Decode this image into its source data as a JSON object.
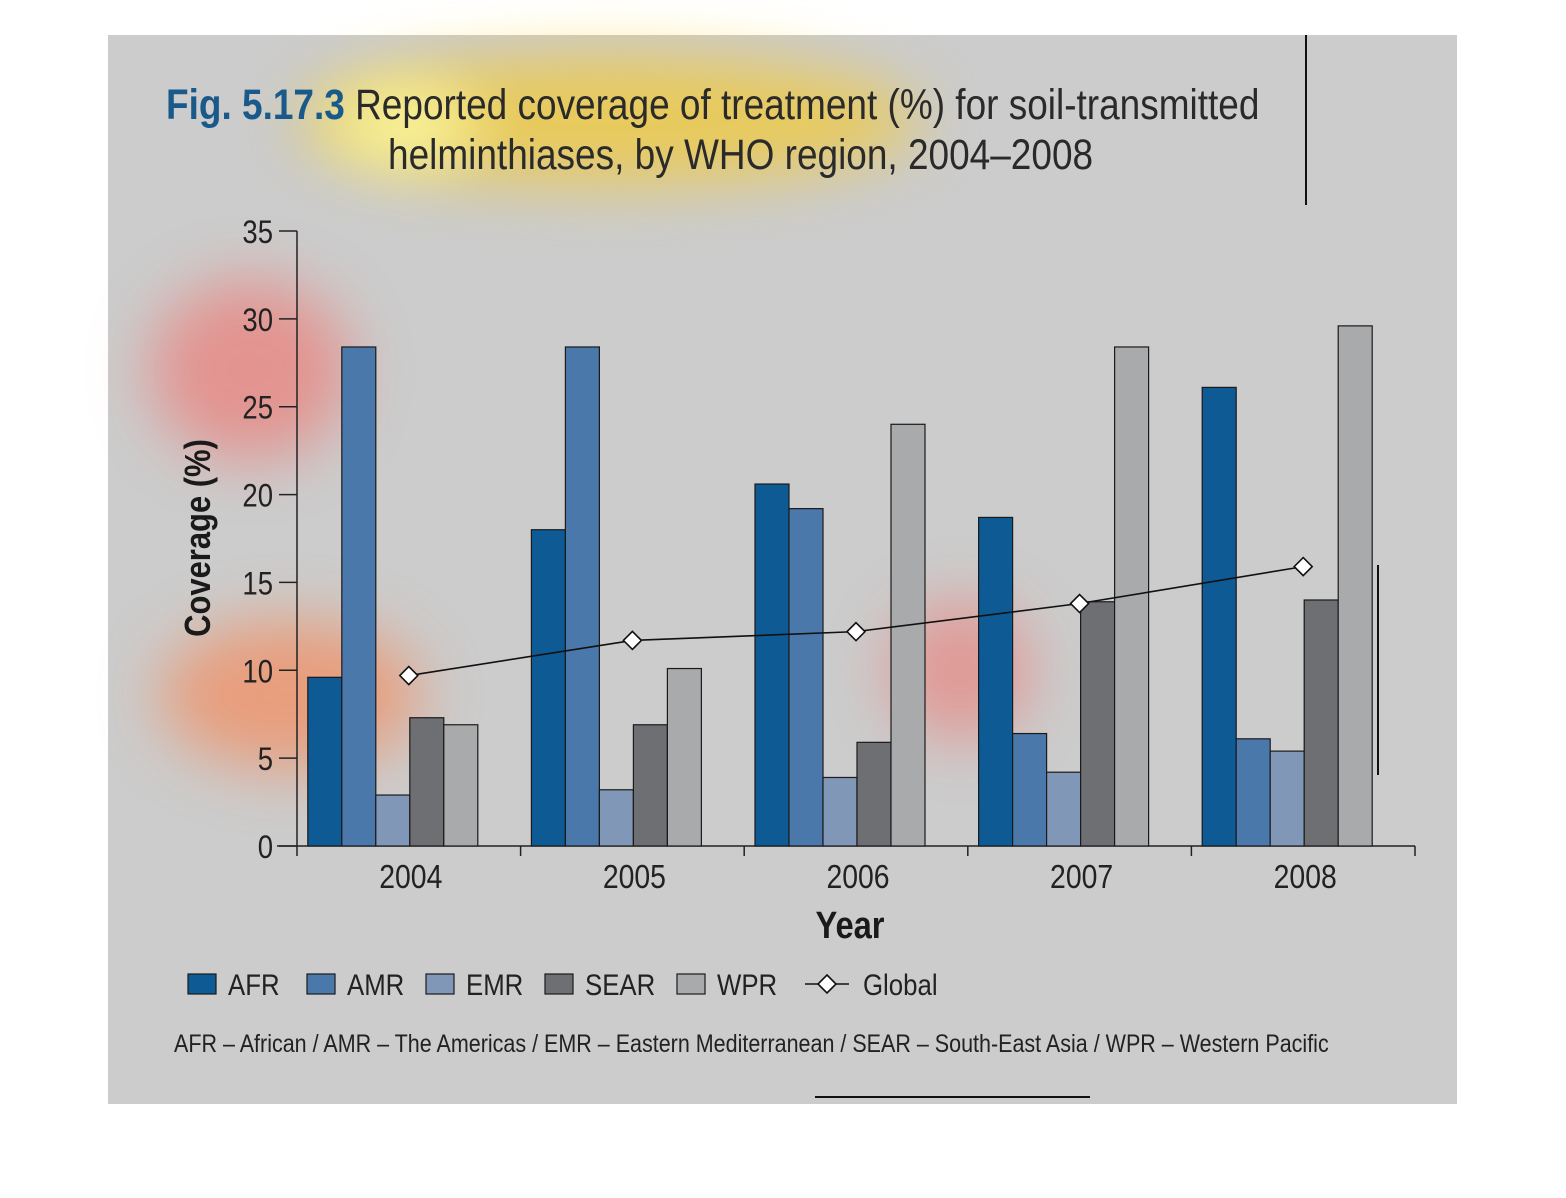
{
  "figure": {
    "label": "Fig. 5.17.3",
    "title_line1": "Reported coverage of treatment (%) for soil-transmitted",
    "title_line2": "helminthiases, by WHO region, 2004–2008"
  },
  "footnote": "AFR – African / AMR – The Americas / EMR – Eastern Mediterranean / SEAR – South-East Asia / WPR – Western Pacific",
  "chart_data": {
    "type": "bar",
    "title": "Reported coverage of treatment (%) for soil-transmitted helminthiases, by WHO region, 2004–2008",
    "xlabel": "Year",
    "ylabel": "Coverage (%)",
    "ylim": [
      0,
      35
    ],
    "yticks": [
      0,
      5,
      10,
      15,
      20,
      25,
      30,
      35
    ],
    "categories": [
      "2004",
      "2005",
      "2006",
      "2007",
      "2008"
    ],
    "series": [
      {
        "name": "AFR",
        "color": "#0e5a94",
        "values": [
          9.6,
          18.0,
          20.6,
          18.7,
          26.1
        ]
      },
      {
        "name": "AMR",
        "color": "#4a78aa",
        "values": [
          28.4,
          28.4,
          19.2,
          6.4,
          6.1
        ]
      },
      {
        "name": "EMR",
        "color": "#8197b8",
        "values": [
          2.9,
          3.2,
          3.9,
          4.2,
          5.4
        ]
      },
      {
        "name": "SEAR",
        "color": "#6e6f73",
        "values": [
          7.3,
          6.9,
          5.9,
          13.9,
          14.0
        ]
      },
      {
        "name": "WPR",
        "color": "#a9aaac",
        "values": [
          6.9,
          10.1,
          24.0,
          28.4,
          29.6
        ]
      }
    ],
    "line_series": {
      "name": "Global",
      "marker": "diamond",
      "values": [
        9.7,
        11.7,
        12.2,
        13.8,
        15.9
      ]
    },
    "legend_position": "bottom",
    "grid": false
  }
}
